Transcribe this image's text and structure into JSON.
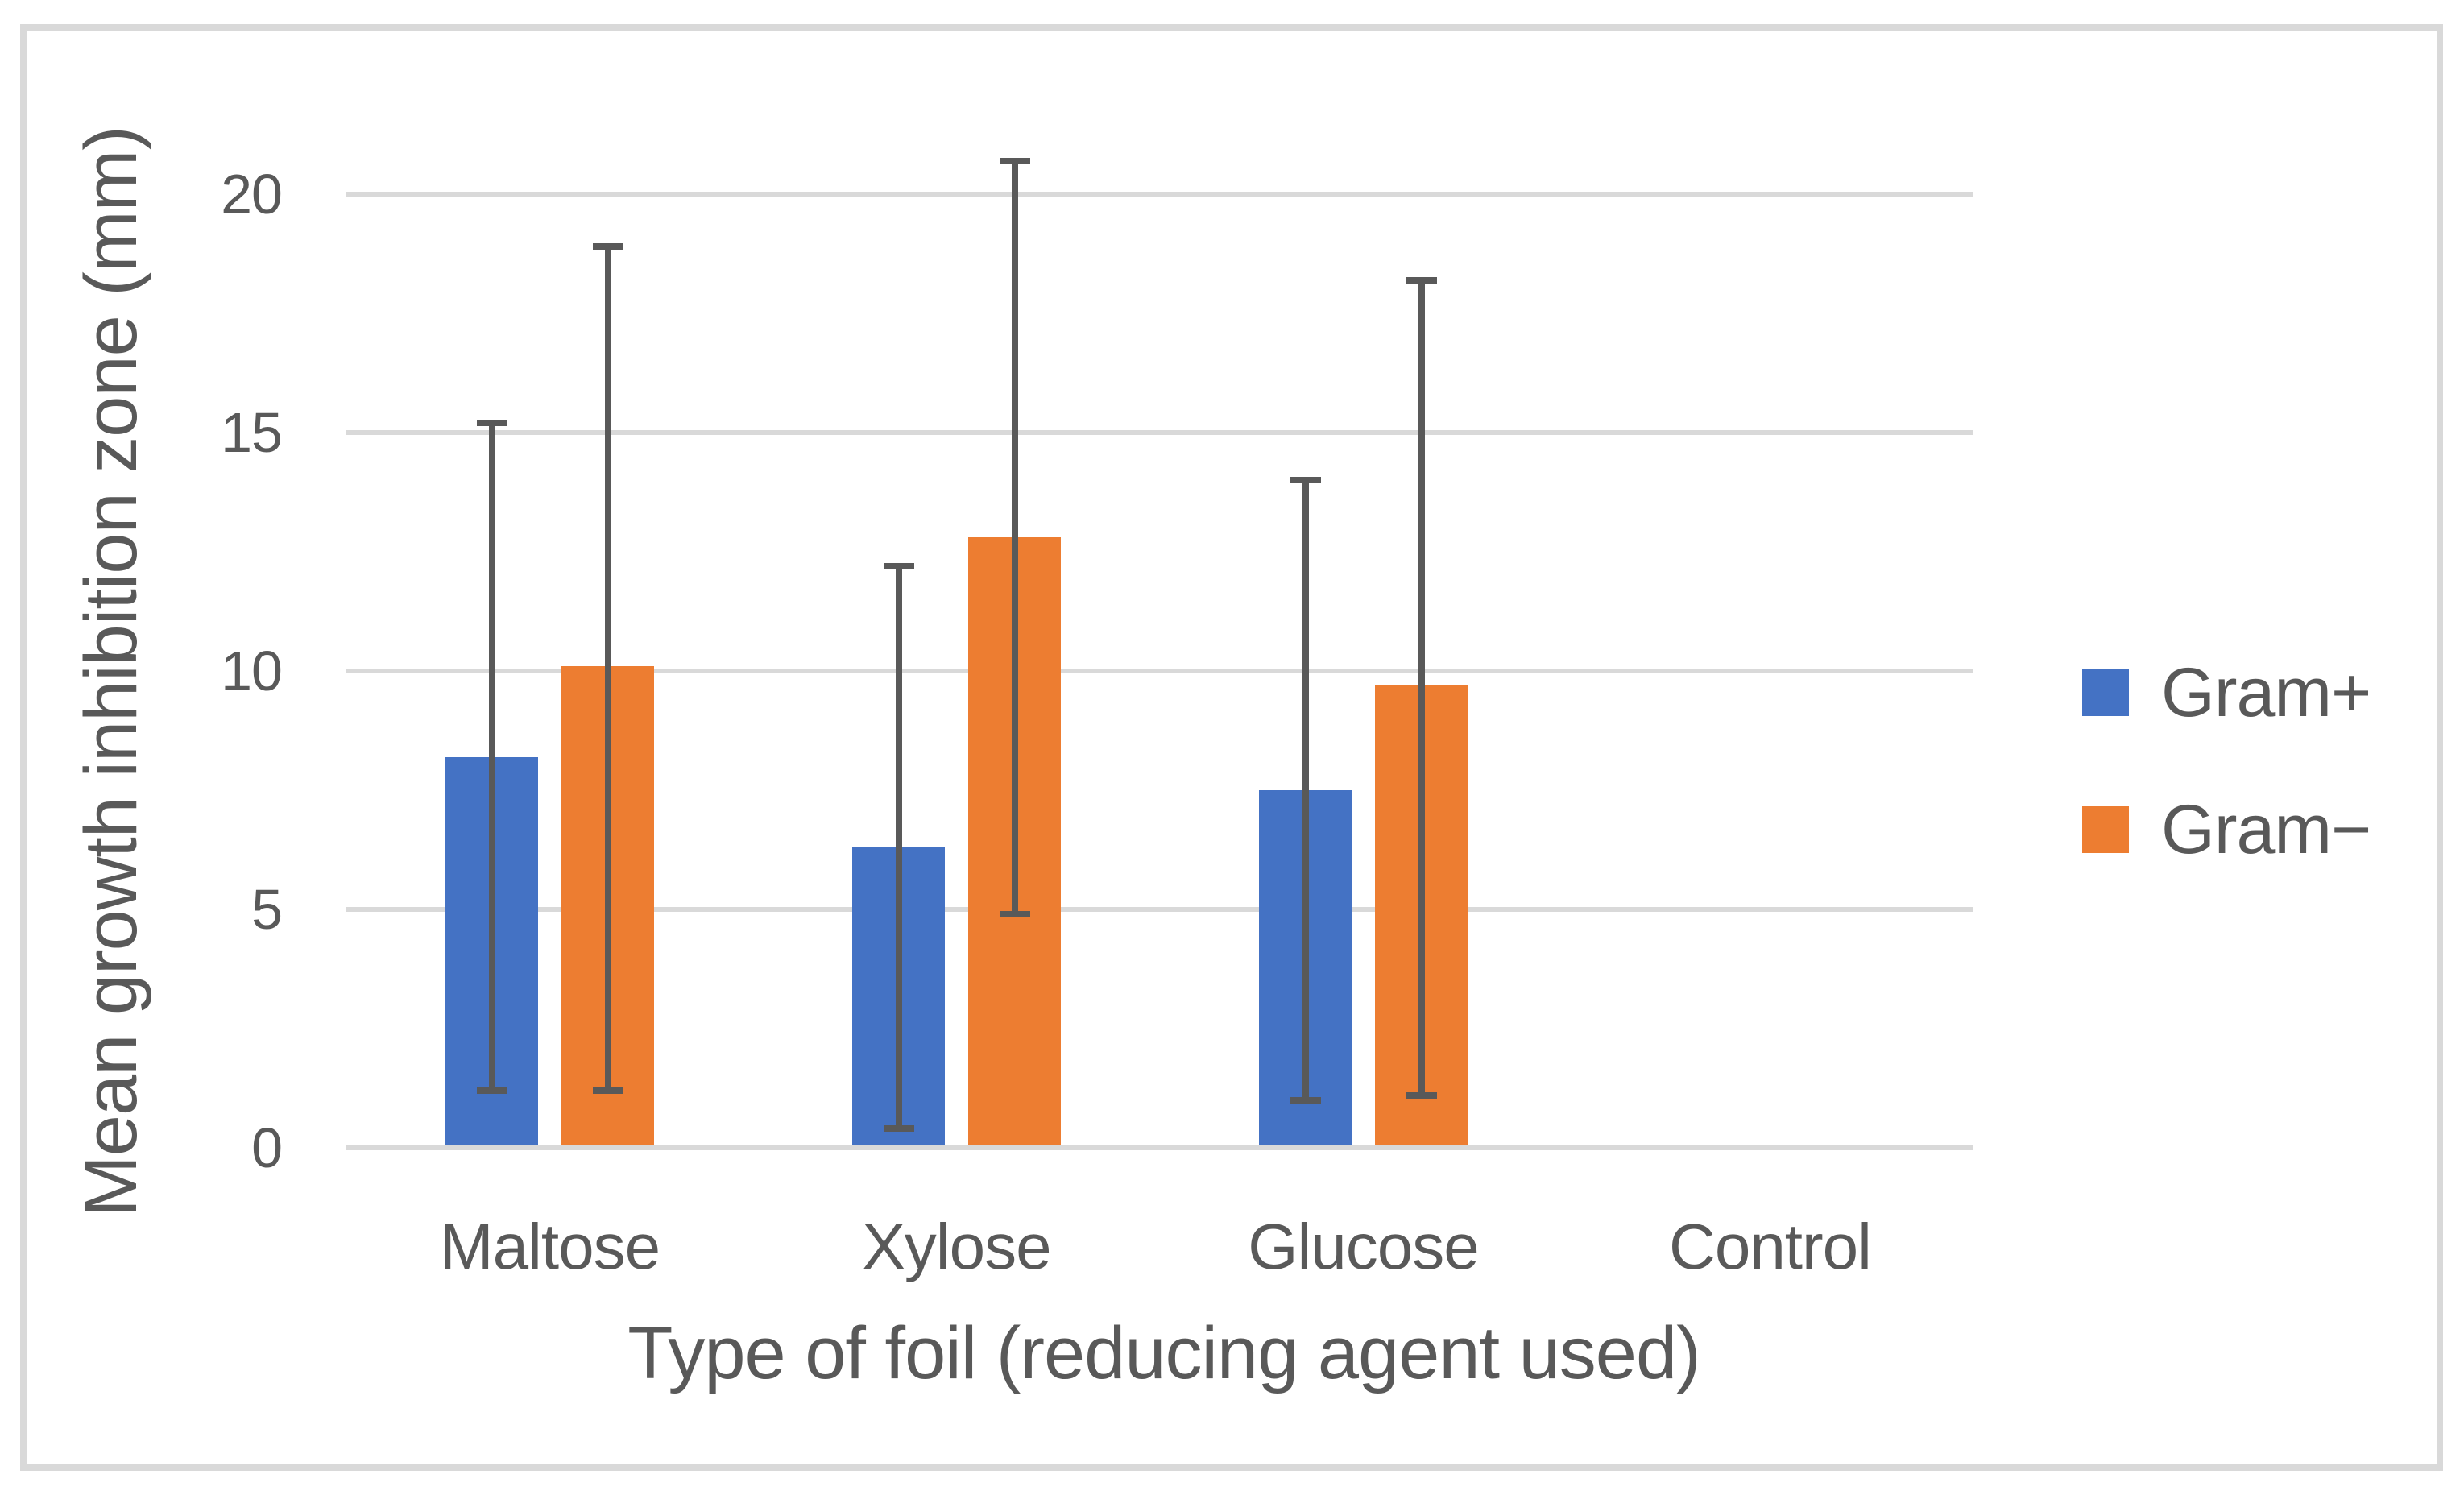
{
  "chart_data": {
    "type": "bar",
    "title": "",
    "categories": [
      "Maltose",
      "Xylose",
      "Glucose",
      "Control"
    ],
    "series": [
      {
        "name": "Gram+",
        "color": "#4472C4",
        "values": [
          8.2,
          6.3,
          7.5,
          0
        ],
        "error_low": [
          1.2,
          0.4,
          1.0,
          null
        ],
        "error_high": [
          15.2,
          12.2,
          14.0,
          null
        ]
      },
      {
        "name": "Gram−",
        "color": "#ED7D31",
        "values": [
          10.1,
          12.8,
          9.7,
          0
        ],
        "error_low": [
          1.2,
          4.9,
          1.1,
          null
        ],
        "error_high": [
          18.9,
          20.7,
          18.2,
          null
        ]
      }
    ],
    "xlabel": "Type of foil (reducing agent used)",
    "ylabel": "Mean growth inhibition zone (mm)",
    "yticks": [
      0,
      5,
      10,
      15,
      20
    ],
    "ylim": [
      0,
      20
    ],
    "grid": true,
    "legend_position": "right"
  },
  "colors": {
    "text": "#595959",
    "gridline": "#D9D9D9",
    "error_bar": "#595959",
    "figure_border": "#D9D9D9",
    "background": "#FFFFFF"
  }
}
